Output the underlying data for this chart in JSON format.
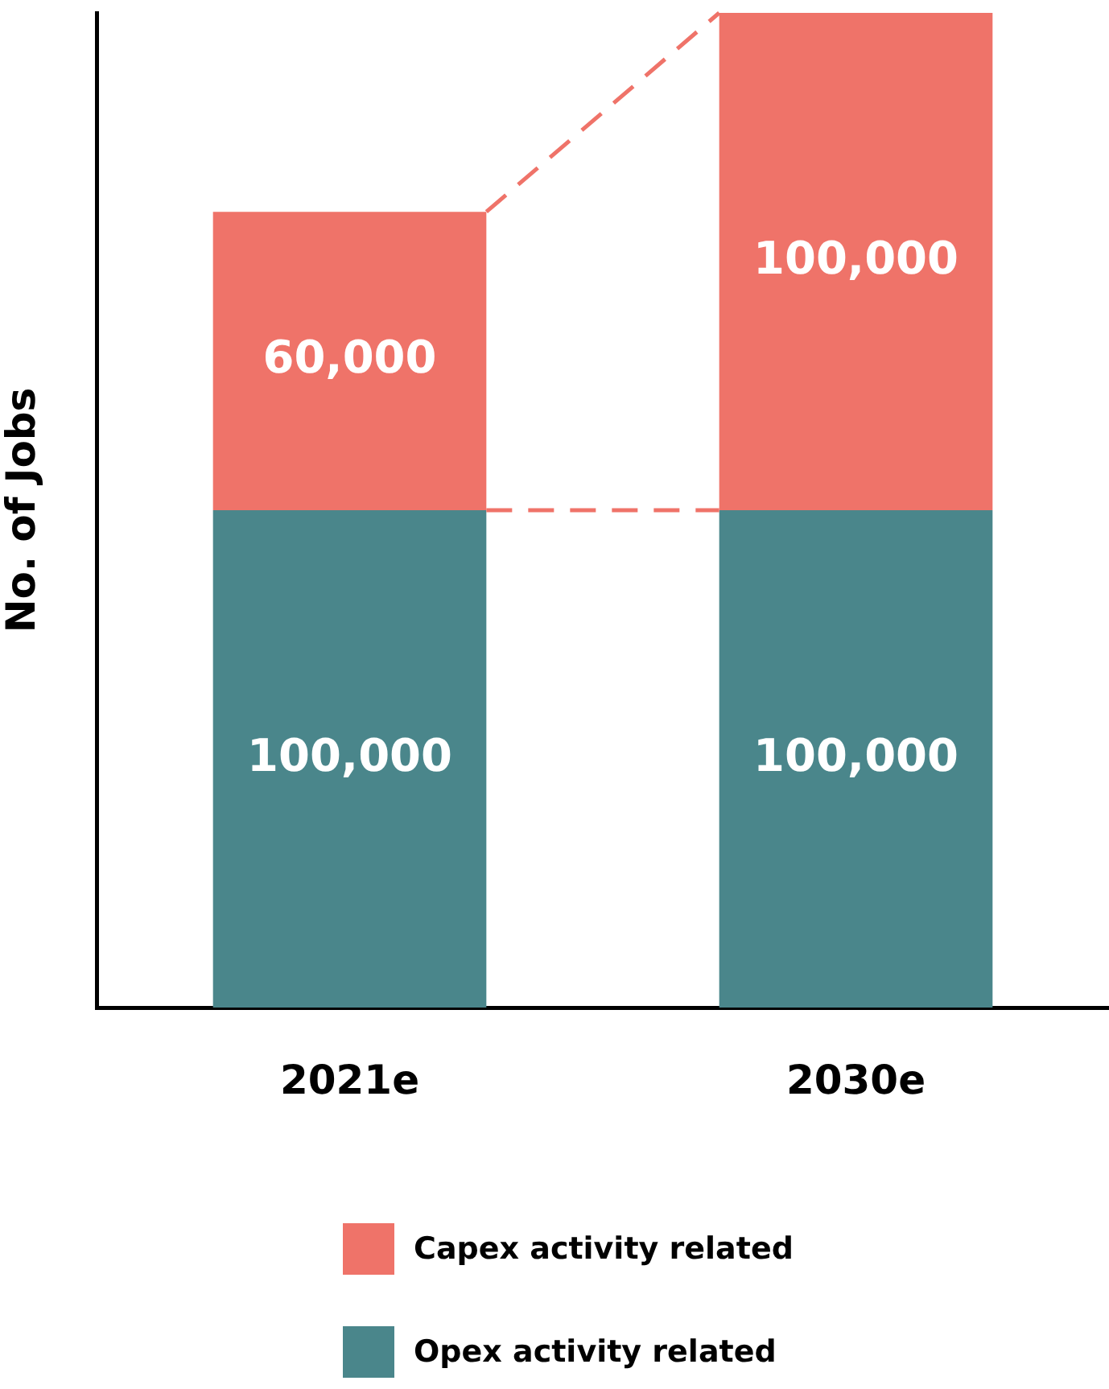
{
  "chart_data": {
    "type": "bar",
    "stacked": true,
    "ylabel": "No. of Jobs",
    "categories": [
      "2021e",
      "2030e"
    ],
    "series": [
      {
        "name": "Opex activity related",
        "color": "#4a868b",
        "values": [
          100000,
          100000
        ],
        "value_labels": [
          "100,000",
          "100,000"
        ]
      },
      {
        "name": "Capex activity related",
        "color": "#ef7369",
        "values": [
          60000,
          100000
        ],
        "value_labels": [
          "60,000",
          "100,000"
        ]
      }
    ],
    "tick_labels": "x",
    "grid": false,
    "legend": "bottom"
  }
}
